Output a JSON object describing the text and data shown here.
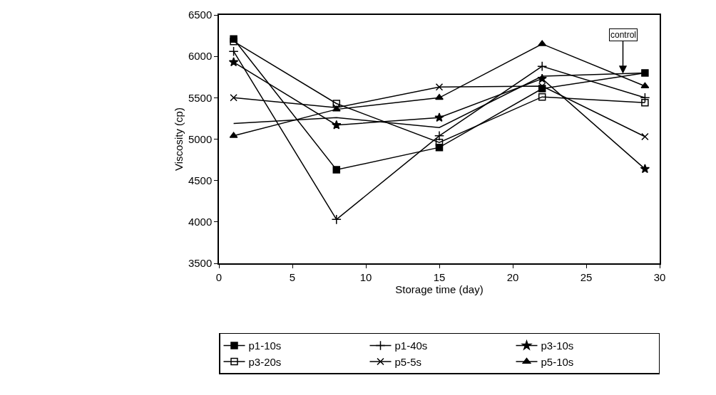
{
  "chart_data": {
    "type": "line",
    "xlabel": "Storage time (day)",
    "ylabel": "Viscosity (cp)",
    "x": [
      1,
      8,
      15,
      22,
      29
    ],
    "xlim": [
      0,
      30
    ],
    "xticks": [
      0,
      5,
      10,
      15,
      20,
      25,
      30
    ],
    "ylim": [
      3500,
      6500
    ],
    "yticks": [
      3500,
      4000,
      4500,
      5000,
      5500,
      6000,
      6500
    ],
    "grid": false,
    "legend": "bottom",
    "series": [
      {
        "name": "p1-10s",
        "color": "#000000",
        "marker": "square",
        "values": [
          6210,
          4630,
          4900,
          5610,
          5800
        ]
      },
      {
        "name": "p1-40s",
        "color": "#000000",
        "marker": "cross",
        "values": [
          6060,
          4030,
          5040,
          5880,
          5500
        ]
      },
      {
        "name": "p3-10s",
        "color": "#000000",
        "marker": "star",
        "values": [
          5930,
          5170,
          5260,
          5730,
          4640
        ]
      },
      {
        "name": "p3-20s",
        "color": "#000000",
        "marker": "square-open",
        "values": [
          6180,
          5430,
          4960,
          5510,
          5440
        ]
      },
      {
        "name": "p5-5s",
        "color": "#000000",
        "marker": "x",
        "values": [
          5500,
          5380,
          5630,
          5640,
          5030
        ]
      },
      {
        "name": "p5-10s",
        "color": "#000000",
        "marker": "triangle",
        "values": [
          5040,
          5360,
          5500,
          6150,
          5640
        ]
      },
      {
        "color": "#000000",
        "marker": "none",
        "values": [
          5190,
          5260,
          5140,
          5760,
          5800
        ]
      }
    ],
    "annotations": [
      {
        "text": "control",
        "x": 27.5,
        "y": 5790
      }
    ]
  }
}
